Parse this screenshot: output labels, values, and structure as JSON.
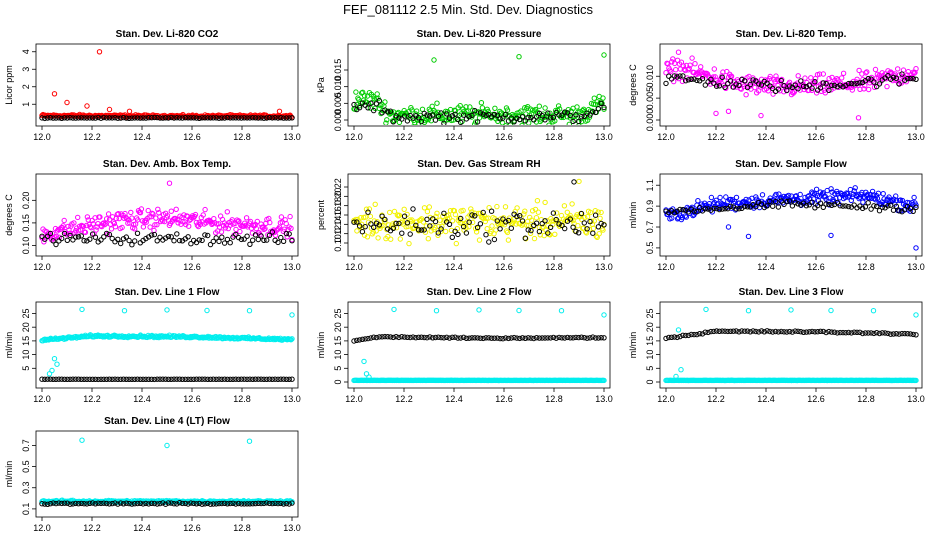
{
  "title": "FEF_081112  2.5 Min. Std. Dev. Diagnostics",
  "colors": {
    "red": "#ff0000",
    "green": "#00cc00",
    "magenta": "#ff00ff",
    "yellow": "#f2f200",
    "blue": "#0000ff",
    "cyan": "#00eeee",
    "black": "#000000"
  },
  "chart_data": [
    {
      "type": "scatter",
      "title": "Stan. Dev. Li-820 CO2",
      "ylabel": "Licor ppm",
      "xlim": [
        12.0,
        13.0
      ],
      "ylim": [
        0.1,
        4.1
      ],
      "xticks": [
        12.0,
        12.2,
        12.4,
        12.6,
        12.8,
        13.0
      ],
      "xtick_labels": [
        "12.0",
        "12.2",
        "12.4",
        "12.6",
        "12.8",
        "13.0"
      ],
      "yticks": [
        1,
        2,
        3,
        4
      ],
      "ytick_labels": [
        "1",
        "2",
        "3",
        "4"
      ],
      "series": [
        {
          "color": "red",
          "baseline": [
            [
              12.0,
              0.35
            ],
            [
              12.5,
              0.32
            ],
            [
              13.0,
              0.32
            ]
          ],
          "spread": 0.1,
          "outliers": [
            [
              12.23,
              4.0
            ],
            [
              12.05,
              1.6
            ],
            [
              12.1,
              1.1
            ],
            [
              12.18,
              0.9
            ],
            [
              12.27,
              0.7
            ],
            [
              12.35,
              0.6
            ],
            [
              12.95,
              0.6
            ]
          ]
        },
        {
          "color": "black",
          "baseline": [
            [
              12.0,
              0.22
            ],
            [
              13.0,
              0.22
            ]
          ],
          "spread": 0.03,
          "outliers": []
        }
      ]
    },
    {
      "type": "scatter",
      "title": "Stan. Dev. Li-820 Pressure",
      "ylabel": "kPa",
      "xlim": [
        12.0,
        13.0
      ],
      "ylim": [
        0.0,
        0.021
      ],
      "xticks": [
        12.0,
        12.2,
        12.4,
        12.6,
        12.8,
        13.0
      ],
      "xtick_labels": [
        "12.0",
        "12.2",
        "12.4",
        "12.6",
        "12.8",
        "13.0"
      ],
      "yticks": [
        0.0,
        0.005,
        0.01,
        0.015
      ],
      "ytick_labels": [
        "0.000",
        "0.005",
        "0.010",
        "0.015"
      ],
      "series": [
        {
          "color": "green",
          "baseline": [
            [
              12.0,
              0.006
            ],
            [
              12.08,
              0.006
            ],
            [
              12.15,
              0.0015
            ],
            [
              12.9,
              0.0015
            ],
            [
              13.0,
              0.005
            ]
          ],
          "spread": 0.0045,
          "outliers": [
            [
              12.32,
              0.018
            ],
            [
              12.66,
              0.019
            ],
            [
              13.0,
              0.0195
            ]
          ]
        },
        {
          "color": "black",
          "baseline": [
            [
              12.0,
              0.004
            ],
            [
              12.1,
              0.004
            ],
            [
              12.15,
              0.001
            ],
            [
              12.9,
              0.001
            ],
            [
              13.0,
              0.004
            ]
          ],
          "spread": 0.0025,
          "outliers": []
        }
      ]
    },
    {
      "type": "scatter",
      "title": "Stan. Dev. Li-820 Temp.",
      "ylabel": "degrees C",
      "xlim": [
        12.0,
        13.0
      ],
      "ylim": [
        0.0,
        0.016
      ],
      "xticks": [
        12.0,
        12.2,
        12.4,
        12.6,
        12.8,
        13.0
      ],
      "xtick_labels": [
        "12.0",
        "12.2",
        "12.4",
        "12.6",
        "12.8",
        "13.0"
      ],
      "yticks": [
        0.0,
        0.005,
        0.01
      ],
      "ytick_labels": [
        "0.000",
        "0.005",
        "0.010"
      ],
      "series": [
        {
          "color": "magenta",
          "baseline": [
            [
              12.0,
              0.011
            ],
            [
              12.05,
              0.012
            ],
            [
              12.3,
              0.008
            ],
            [
              12.5,
              0.0075
            ],
            [
              12.8,
              0.0085
            ],
            [
              13.0,
              0.011
            ]
          ],
          "spread": 0.0035,
          "outliers": [
            [
              12.05,
              0.0155
            ],
            [
              12.25,
              0.002
            ],
            [
              12.38,
              0.001
            ],
            [
              12.77,
              0.0005
            ],
            [
              12.2,
              0.0015
            ]
          ]
        },
        {
          "color": "black",
          "baseline": [
            [
              12.0,
              0.0095
            ],
            [
              12.5,
              0.0075
            ],
            [
              13.0,
              0.0095
            ]
          ],
          "spread": 0.002,
          "outliers": []
        }
      ]
    },
    {
      "type": "scatter",
      "title": "Stan. Dev. Amb. Box Temp.",
      "ylabel": "degrees C",
      "xlim": [
        12.0,
        13.0
      ],
      "ylim": [
        0.09,
        0.245
      ],
      "xticks": [
        12.0,
        12.2,
        12.4,
        12.6,
        12.8,
        13.0
      ],
      "xtick_labels": [
        "12.0",
        "12.2",
        "12.4",
        "12.6",
        "12.8",
        "13.0"
      ],
      "yticks": [
        0.1,
        0.15,
        0.2
      ],
      "ytick_labels": [
        "0.10",
        "0.15",
        "0.20"
      ],
      "series": [
        {
          "color": "magenta",
          "baseline": [
            [
              12.0,
              0.125
            ],
            [
              12.3,
              0.155
            ],
            [
              12.5,
              0.16
            ],
            [
              12.7,
              0.15
            ],
            [
              13.0,
              0.14
            ]
          ],
          "spread": 0.032,
          "outliers": [
            [
              12.51,
              0.238
            ]
          ]
        },
        {
          "color": "black",
          "baseline": [
            [
              12.0,
              0.115
            ],
            [
              13.0,
              0.115
            ]
          ],
          "spread": 0.018,
          "outliers": []
        }
      ]
    },
    {
      "type": "scatter",
      "title": "Stan. Dev. Gas Stream RH",
      "ylabel": "percent",
      "xlim": [
        12.0,
        13.0
      ],
      "ylim": [
        0.085,
        0.235
      ],
      "xticks": [
        12.0,
        12.2,
        12.4,
        12.6,
        12.8,
        13.0
      ],
      "xtick_labels": [
        "12.0",
        "12.2",
        "12.4",
        "12.6",
        "12.8",
        "13.0"
      ],
      "yticks": [
        0.1,
        0.12,
        0.14,
        0.16,
        0.18,
        0.2,
        0.22
      ],
      "ytick_labels": [
        "0.10",
        "0.12",
        "0.14",
        "0.16",
        "0.18",
        "0.20",
        "0.22"
      ],
      "series": [
        {
          "color": "yellow",
          "baseline": [
            [
              12.0,
              0.145
            ],
            [
              13.0,
              0.145
            ]
          ],
          "spread": 0.055,
          "outliers": [
            [
              12.9,
              0.232
            ]
          ]
        },
        {
          "color": "black",
          "baseline": [
            [
              12.0,
              0.14
            ],
            [
              13.0,
              0.14
            ]
          ],
          "spread": 0.045,
          "outliers": [
            [
              12.88,
              0.231
            ]
          ]
        }
      ]
    },
    {
      "type": "scatter",
      "title": "Stan. Dev. Sample Flow",
      "ylabel": "ml/min",
      "xlim": [
        12.0,
        13.0
      ],
      "ylim": [
        0.48,
        1.15
      ],
      "xticks": [
        12.0,
        12.2,
        12.4,
        12.6,
        12.8,
        13.0
      ],
      "xtick_labels": [
        "12.0",
        "12.2",
        "12.4",
        "12.6",
        "12.8",
        "13.0"
      ],
      "yticks": [
        0.5,
        0.7,
        0.9,
        1.1
      ],
      "ytick_labels": [
        "0.5",
        "0.7",
        "0.9",
        "1.1"
      ],
      "series": [
        {
          "color": "blue",
          "baseline": [
            [
              12.0,
              0.8
            ],
            [
              12.2,
              0.92
            ],
            [
              12.5,
              0.97
            ],
            [
              12.8,
              1.0
            ],
            [
              13.0,
              0.9
            ]
          ],
          "spread": 0.1,
          "outliers": [
            [
              12.33,
              0.61
            ],
            [
              12.66,
              0.62
            ],
            [
              13.0,
              0.5
            ],
            [
              12.25,
              0.7
            ]
          ]
        },
        {
          "color": "black",
          "baseline": [
            [
              12.0,
              0.85
            ],
            [
              12.5,
              0.92
            ],
            [
              13.0,
              0.88
            ]
          ],
          "spread": 0.05,
          "outliers": []
        }
      ]
    },
    {
      "type": "scatter",
      "title": "Stan. Dev. Line 1 Flow",
      "ylabel": "ml/min",
      "xlim": [
        12.0,
        13.0
      ],
      "ylim": [
        0.0,
        27
      ],
      "xticks": [
        12.0,
        12.2,
        12.4,
        12.6,
        12.8,
        13.0
      ],
      "xtick_labels": [
        "12.0",
        "12.2",
        "12.4",
        "12.6",
        "12.8",
        "13.0"
      ],
      "yticks": [
        5,
        10,
        15,
        20,
        25
      ],
      "ytick_labels": [
        "5",
        "10",
        "15",
        "20",
        "25"
      ],
      "series": [
        {
          "color": "cyan",
          "baseline": [
            [
              12.0,
              15.3
            ],
            [
              12.2,
              16.8
            ],
            [
              12.6,
              16.5
            ],
            [
              13.0,
              15.5
            ]
          ],
          "spread": 0.6,
          "outliers": [
            [
              12.16,
              26.5
            ],
            [
              12.33,
              26.0
            ],
            [
              12.5,
              26.3
            ],
            [
              12.66,
              26.1
            ],
            [
              12.83,
              26.0
            ],
            [
              13.0,
              24.5
            ],
            [
              12.05,
              8.5
            ],
            [
              12.06,
              6.5
            ],
            [
              12.04,
              4.2
            ],
            [
              12.03,
              3.0
            ]
          ]
        },
        {
          "color": "black",
          "baseline": [
            [
              12.0,
              1.0
            ],
            [
              13.0,
              1.0
            ]
          ],
          "spread": 0.05,
          "outliers": []
        }
      ]
    },
    {
      "type": "scatter",
      "title": "Stan. Dev. Line 2 Flow",
      "ylabel": "ml/min",
      "xlim": [
        12.0,
        13.0
      ],
      "ylim": [
        0.0,
        27
      ],
      "xticks": [
        12.0,
        12.2,
        12.4,
        12.6,
        12.8,
        13.0
      ],
      "xtick_labels": [
        "12.0",
        "12.2",
        "12.4",
        "12.6",
        "12.8",
        "13.0"
      ],
      "yticks": [
        0,
        5,
        10,
        15,
        20,
        25
      ],
      "ytick_labels": [
        "0",
        "5",
        "10",
        "15",
        "20",
        "25"
      ],
      "series": [
        {
          "color": "cyan",
          "baseline": [
            [
              12.0,
              0.6
            ],
            [
              13.0,
              0.6
            ]
          ],
          "spread": 0.05,
          "outliers": [
            [
              12.16,
              26.5
            ],
            [
              12.33,
              26.0
            ],
            [
              12.5,
              26.3
            ],
            [
              12.66,
              26.1
            ],
            [
              12.83,
              26.0
            ],
            [
              13.0,
              24.5
            ],
            [
              12.05,
              3.0
            ],
            [
              12.04,
              7.5
            ],
            [
              12.06,
              1.8
            ]
          ]
        },
        {
          "color": "black",
          "baseline": [
            [
              12.0,
              15.0
            ],
            [
              12.1,
              16.5
            ],
            [
              12.5,
              16.0
            ],
            [
              13.0,
              16.2
            ]
          ],
          "spread": 0.3,
          "outliers": []
        }
      ]
    },
    {
      "type": "scatter",
      "title": "Stan. Dev. Line 3 Flow",
      "ylabel": "ml/min",
      "xlim": [
        12.0,
        13.0
      ],
      "ylim": [
        0.0,
        27
      ],
      "xticks": [
        12.0,
        12.2,
        12.4,
        12.6,
        12.8,
        13.0
      ],
      "xtick_labels": [
        "12.0",
        "12.2",
        "12.4",
        "12.6",
        "12.8",
        "13.0"
      ],
      "yticks": [
        0,
        5,
        10,
        15,
        20,
        25
      ],
      "ytick_labels": [
        "0",
        "5",
        "10",
        "15",
        "20",
        "25"
      ],
      "series": [
        {
          "color": "cyan",
          "baseline": [
            [
              12.0,
              0.6
            ],
            [
              13.0,
              0.6
            ]
          ],
          "spread": 0.05,
          "outliers": [
            [
              12.16,
              26.5
            ],
            [
              12.33,
              26.0
            ],
            [
              12.5,
              26.3
            ],
            [
              12.66,
              26.1
            ],
            [
              12.83,
              26.0
            ],
            [
              13.0,
              24.5
            ],
            [
              12.05,
              19.0
            ],
            [
              12.06,
              4.5
            ],
            [
              12.04,
              2.0
            ]
          ]
        },
        {
          "color": "black",
          "baseline": [
            [
              12.0,
              16.0
            ],
            [
              12.2,
              18.5
            ],
            [
              12.6,
              18.3
            ],
            [
              13.0,
              17.5
            ]
          ],
          "spread": 0.4,
          "outliers": []
        }
      ]
    },
    {
      "type": "scatter",
      "title": "Stan. Dev. Line 4 (LT) Flow",
      "ylabel": "ml/min",
      "xlim": [
        12.0,
        13.0
      ],
      "ylim": [
        0.08,
        0.78
      ],
      "xticks": [
        12.0,
        12.2,
        12.4,
        12.6,
        12.8,
        13.0
      ],
      "xtick_labels": [
        "12.0",
        "12.2",
        "12.4",
        "12.6",
        "12.8",
        "13.0"
      ],
      "yticks": [
        0.1,
        0.3,
        0.5,
        0.7
      ],
      "ytick_labels": [
        "0.1",
        "0.3",
        "0.5",
        "0.7"
      ],
      "series": [
        {
          "color": "cyan",
          "baseline": [
            [
              12.0,
              0.17
            ],
            [
              13.0,
              0.17
            ]
          ],
          "spread": 0.015,
          "outliers": [
            [
              12.16,
              0.75
            ],
            [
              12.5,
              0.7
            ],
            [
              12.83,
              0.74
            ]
          ]
        },
        {
          "color": "black",
          "baseline": [
            [
              12.0,
              0.15
            ],
            [
              13.0,
              0.15
            ]
          ],
          "spread": 0.01,
          "outliers": []
        }
      ]
    }
  ]
}
